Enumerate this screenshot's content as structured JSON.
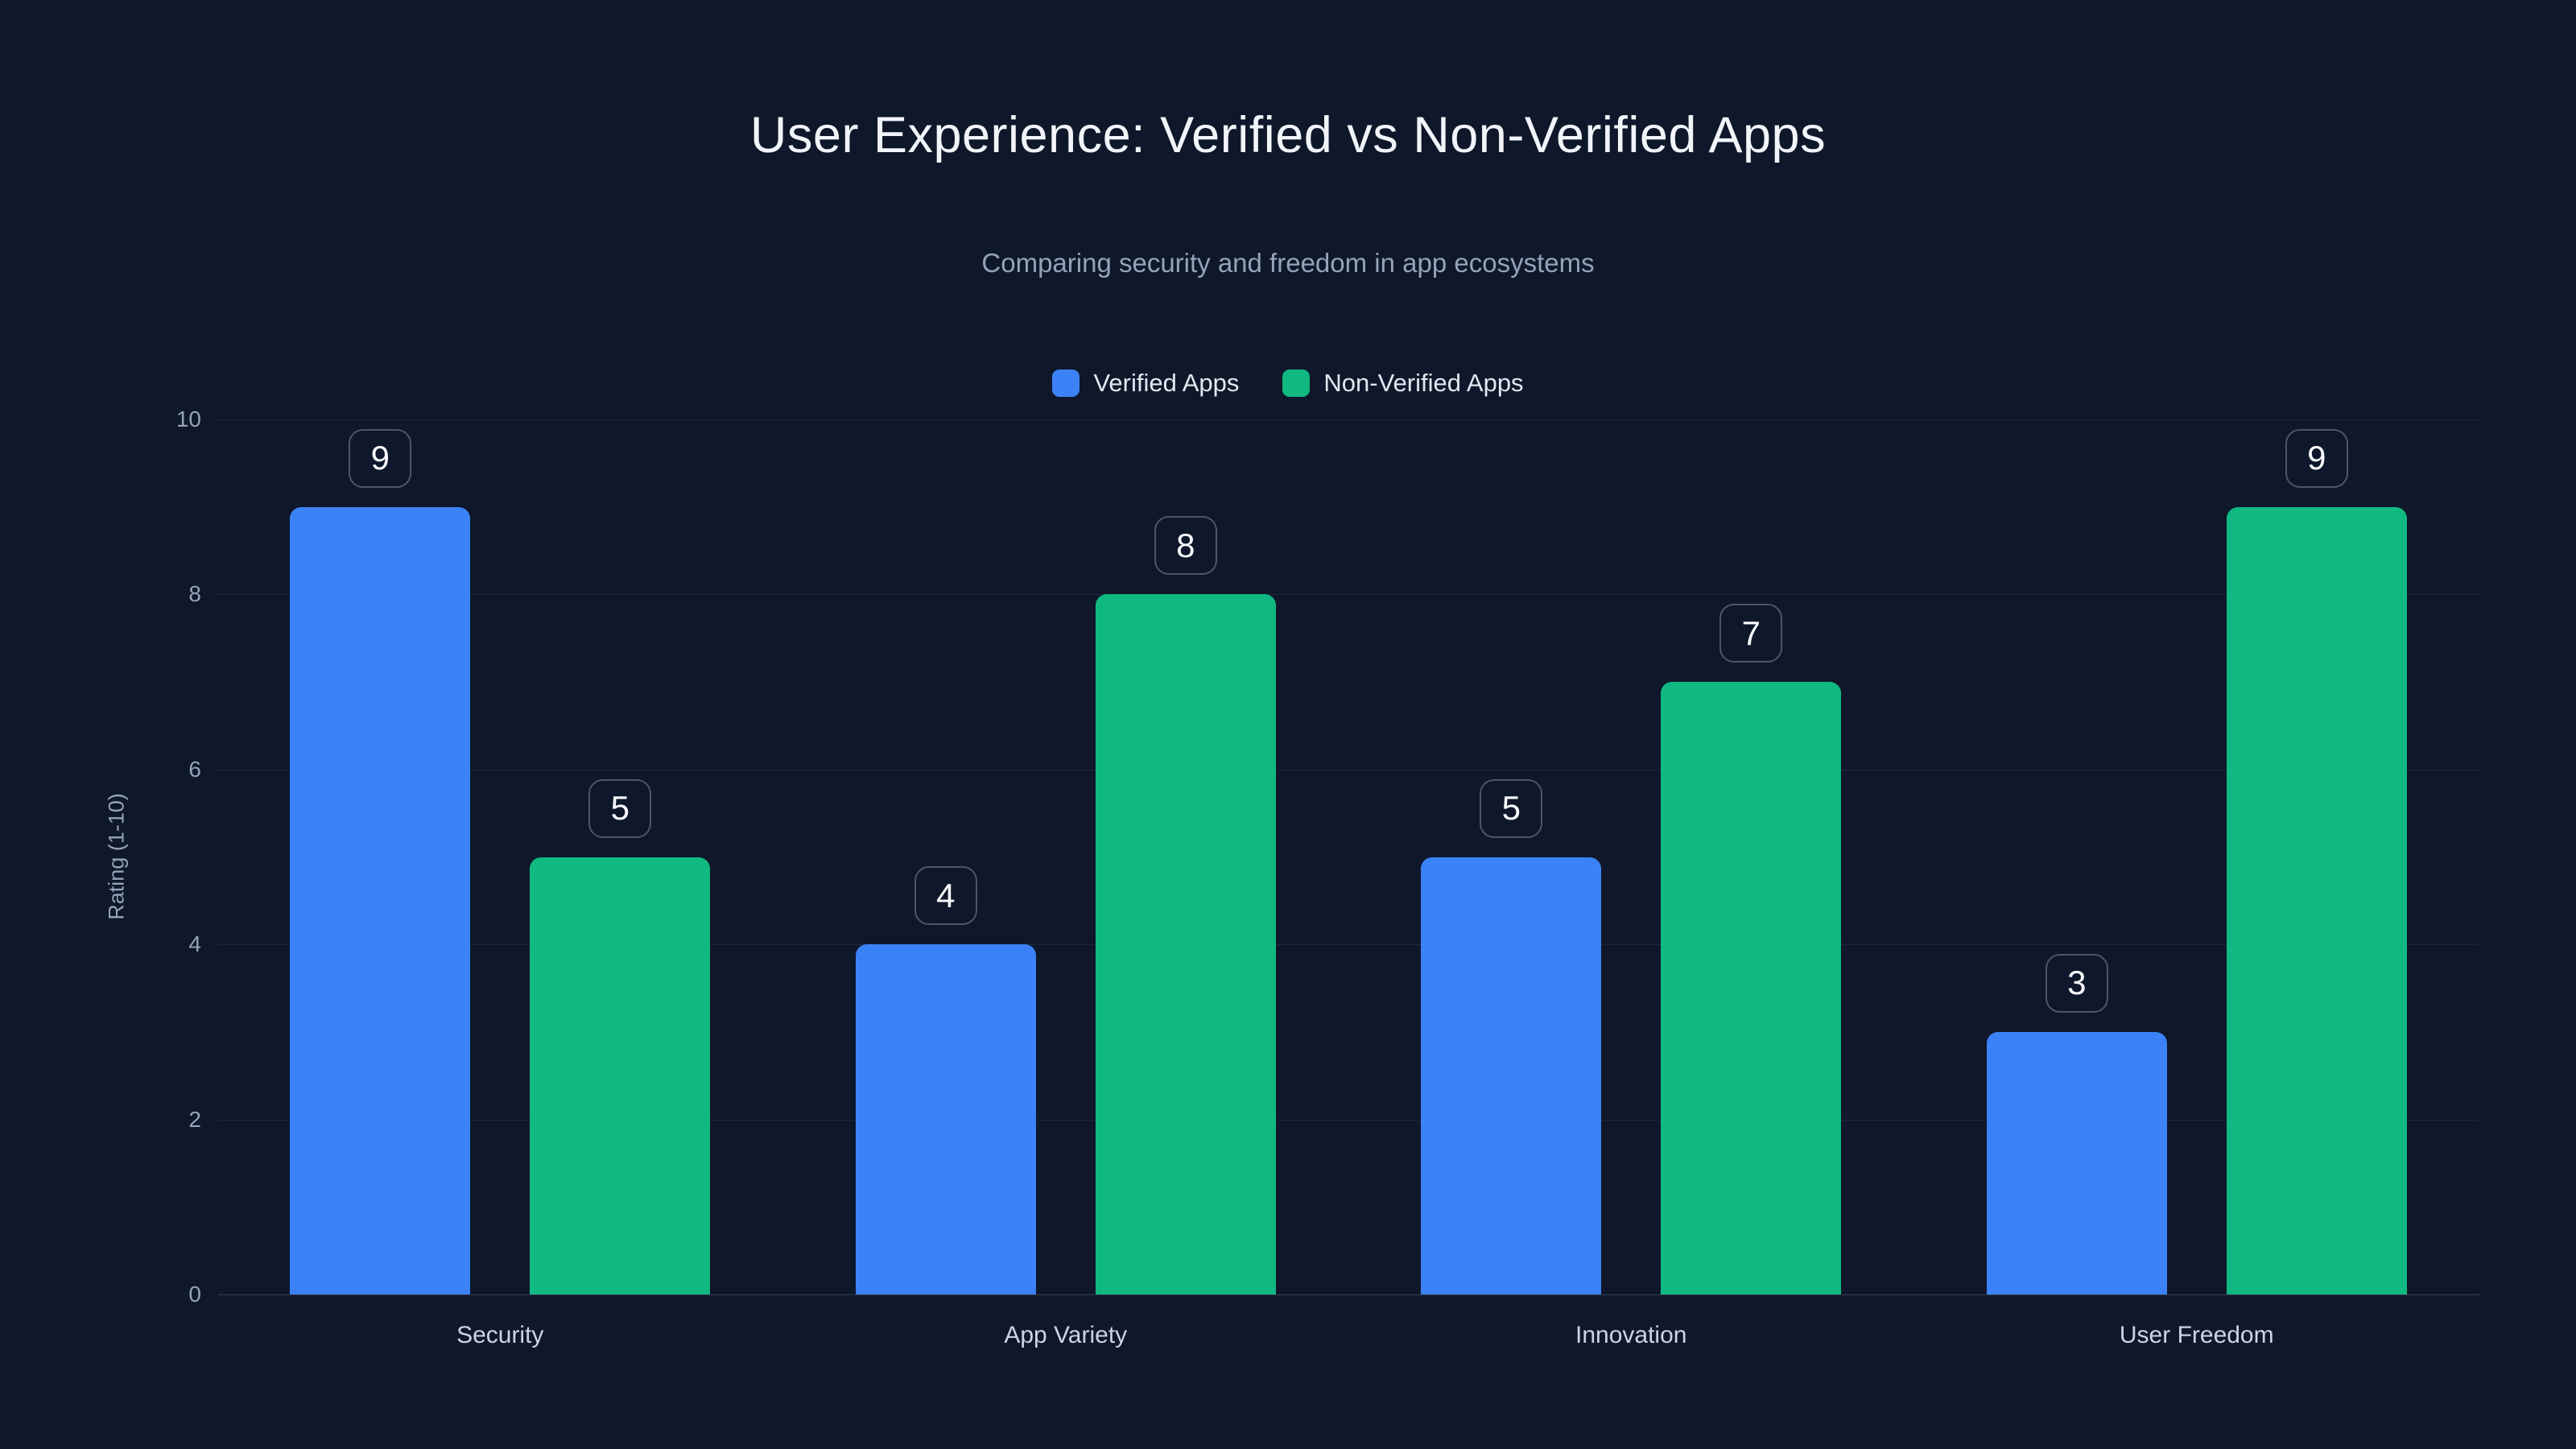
{
  "title": "User Experience: Verified vs Non-Verified Apps",
  "subtitle": "Comparing security and freedom in app ecosystems",
  "y_axis": {
    "label": "Rating (1-10)",
    "ticks": [
      "10",
      "8",
      "6",
      "4",
      "2",
      "0"
    ]
  },
  "x_axis": {
    "categories": [
      "Security",
      "App Variety",
      "Innovation",
      "User Freedom"
    ]
  },
  "legend": {
    "items": [
      {
        "label": "Verified Apps",
        "color": "#3b82f6"
      },
      {
        "label": "Non-Verified Apps",
        "color": "#10b981"
      }
    ]
  },
  "colors": {
    "background": "#0f172a",
    "verified_blue": "#3b82f6",
    "non_verified_green": "#10b981",
    "title_text": "#f1f5f9",
    "muted_text": "#94a3b8"
  },
  "chart_data": {
    "type": "bar",
    "title": "User Experience: Verified vs Non-Verified Apps",
    "subtitle": "Comparing security and freedom in app ecosystems",
    "categories": [
      "Security",
      "App Variety",
      "Innovation",
      "User Freedom"
    ],
    "series": [
      {
        "name": "Verified Apps",
        "color": "#3b82f6",
        "values": [
          9,
          4,
          5,
          3
        ]
      },
      {
        "name": "Non-Verified Apps",
        "color": "#10b981",
        "values": [
          5,
          8,
          7,
          9
        ]
      }
    ],
    "xlabel": "",
    "ylabel": "Rating (1-10)",
    "ylim": [
      0,
      10
    ],
    "ytick_step": 2,
    "grid": true,
    "legend_position": "top-center",
    "value_labels": "number badges above each bar",
    "background": "dark navy"
  }
}
